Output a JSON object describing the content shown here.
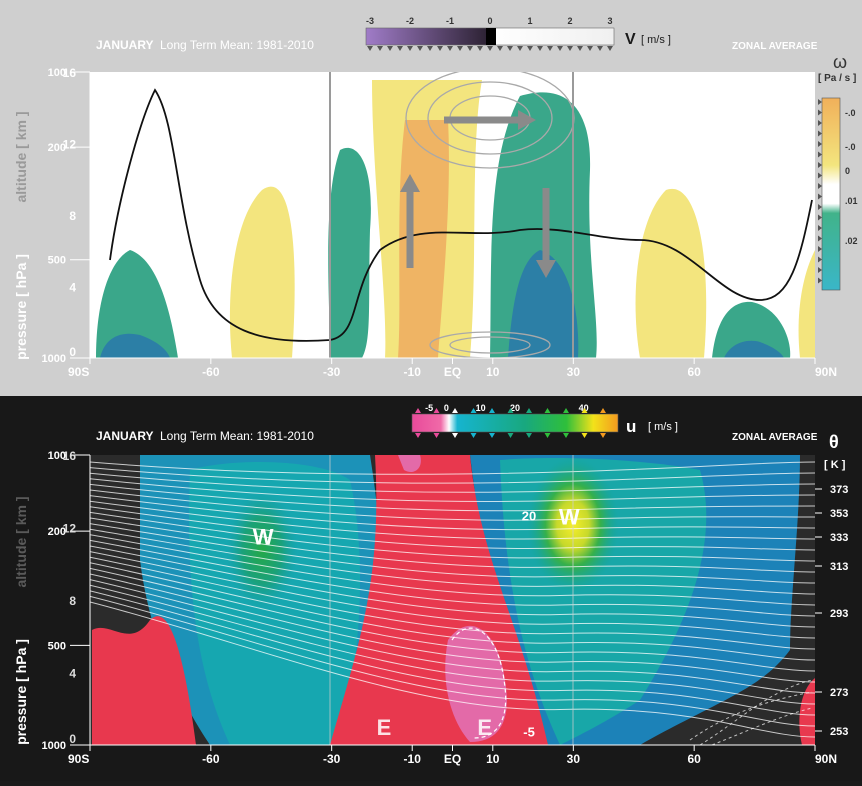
{
  "chart_data": [
    {
      "type": "heatmap",
      "panel": "top",
      "title": "JANUARY",
      "subtitle": "Long Term Mean: 1981-2010",
      "corner_label": "ZONAL AVERAGE",
      "contour_variable": "V",
      "contour_unit": "[ m/s ]",
      "contour_legend_ticks": [
        "-3",
        "-2",
        "-1",
        "0",
        "1",
        "2",
        "3"
      ],
      "fill_variable": "ω",
      "fill_unit": "[ Pa / s ]",
      "fill_legend_ticks": [
        "-.0",
        "-.0",
        "0",
        ".01",
        ".02"
      ],
      "y_left_label": "pressure [ hPa ]",
      "y_right_label": "altitude [ km ]",
      "pressure_ticks": [
        "1000",
        "500",
        "200",
        "100"
      ],
      "altitude_ticks": [
        "0",
        "4",
        "8",
        "12",
        "16"
      ],
      "x_ticks": [
        "90S",
        "-60",
        "-30",
        "-10",
        "EQ",
        "10",
        "30",
        "60",
        "90N"
      ],
      "xlim": [
        -90,
        90
      ],
      "altitude_range_km": [
        0,
        16
      ],
      "colors": {
        "ascent": "#f2e27a",
        "strong_ascent": "#efb464",
        "descent": "#3aa78a",
        "strong_descent": "#2c7fa6"
      }
    },
    {
      "type": "heatmap",
      "panel": "bottom",
      "title": "JANUARY",
      "subtitle": "Long Term Mean: 1981-2010",
      "corner_label": "ZONAL AVERAGE",
      "fill_variable": "u",
      "fill_unit": "[ m/s ]",
      "fill_legend_ticks": [
        "-5",
        "0",
        "10",
        "20",
        "40"
      ],
      "contour_variable": "θ",
      "contour_unit": "[ K ]",
      "theta_ticks": [
        "373",
        "353",
        "333",
        "313",
        "293",
        "273",
        "253"
      ],
      "y_left_label": "pressure [ hPa ]",
      "y_right_label": "altitude [ km ]",
      "pressure_ticks": [
        "1000",
        "500",
        "200",
        "100"
      ],
      "altitude_ticks": [
        "0",
        "4",
        "8",
        "12",
        "16"
      ],
      "x_ticks": [
        "90S",
        "-60",
        "-30",
        "-10",
        "EQ",
        "10",
        "30",
        "60",
        "90N"
      ],
      "xlim": [
        -90,
        90
      ],
      "altitude_range_km": [
        0,
        16
      ],
      "annotations": [
        {
          "text": "W",
          "lat": -47,
          "alt_km": 11.5
        },
        {
          "text": "W",
          "lat": 29,
          "alt_km": 12.6
        },
        {
          "text": "20",
          "lat": 19,
          "alt_km": 12.6
        },
        {
          "text": "E",
          "lat": -17,
          "alt_km": 1.0
        },
        {
          "text": "E",
          "lat": 8,
          "alt_km": 1.0
        },
        {
          "text": "-5",
          "lat": 19,
          "alt_km": 0.7
        }
      ],
      "colors": {
        "easterly": "#e8384e",
        "strong_easterly": "#e06aa8",
        "weak": "#2b2b2b",
        "westerly": "#19a8b4",
        "strong_westerly": "#f6d61e"
      }
    }
  ]
}
